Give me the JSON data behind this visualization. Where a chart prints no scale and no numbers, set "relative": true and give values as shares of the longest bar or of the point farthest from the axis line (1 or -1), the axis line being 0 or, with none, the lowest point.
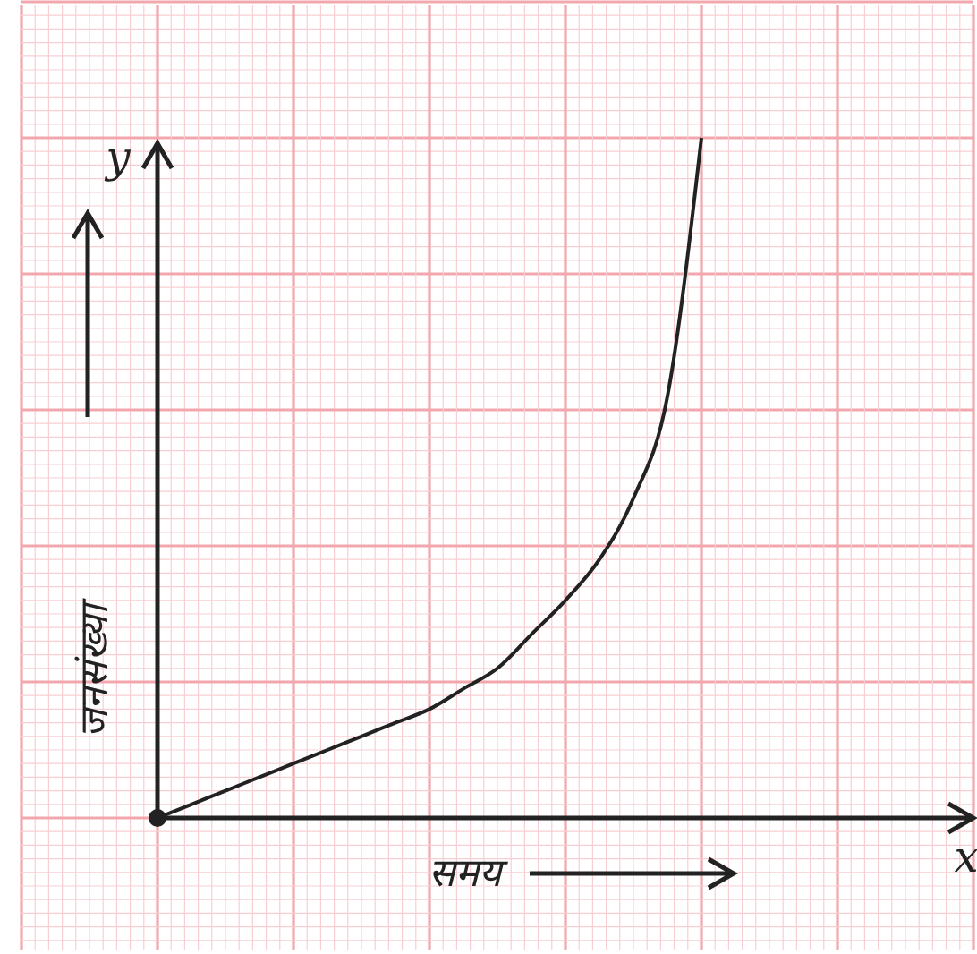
{
  "chart_data": {
    "type": "line",
    "relative": true,
    "xlabel": "समय",
    "ylabel": "जनसंख्या",
    "annotations": [
      "y",
      "x"
    ],
    "categories": [
      null,
      null,
      null,
      null,
      null,
      null,
      null,
      null,
      null,
      null,
      null,
      null,
      null,
      null,
      null,
      null,
      null
    ],
    "series": [
      {
        "color": "#222222",
        "values": [
          0,
          0.02,
          0.04,
          0.06,
          0.08,
          0.1,
          0.12,
          0.14,
          0.16,
          0.19,
          0.22,
          0.27,
          0.32,
          0.38,
          0.47,
          0.62,
          1
        ]
      }
    ],
    "marker": "none",
    "line_style": "solid",
    "grid": true
  }
}
